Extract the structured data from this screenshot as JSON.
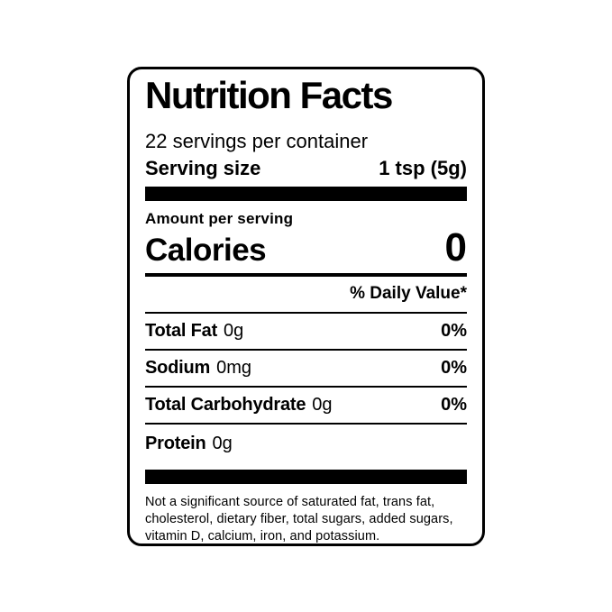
{
  "label": {
    "title": "Nutrition Facts",
    "servings_per_container": "22 servings per container",
    "serving_size_label": "Serving size",
    "serving_size_value": "1 tsp (5g)",
    "amount_per_serving": "Amount per serving",
    "calories_label": "Calories",
    "calories_value": "0",
    "daily_value_header": "% Daily Value*",
    "nutrients": [
      {
        "name": "Total Fat",
        "amount": "0g",
        "dv": "0%"
      },
      {
        "name": "Sodium",
        "amount": "0mg",
        "dv": "0%"
      },
      {
        "name": "Total Carbohydrate",
        "amount": "0g",
        "dv": "0%"
      },
      {
        "name": "Protein",
        "amount": "0g",
        "dv": ""
      }
    ],
    "footnote": "Not a significant source of saturated fat, trans fat, cholesterol, dietary fiber, total sugars, added sugars, vitamin D, calcium, iron, and potassium.",
    "colors": {
      "ink": "#000000",
      "background": "#ffffff"
    }
  }
}
